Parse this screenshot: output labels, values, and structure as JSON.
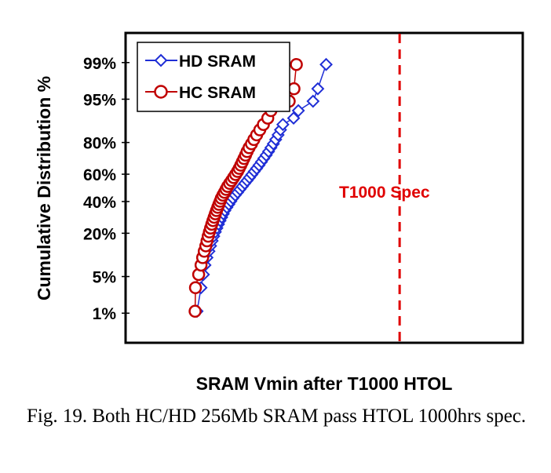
{
  "chart_data": {
    "type": "scatter",
    "title": "",
    "xlabel": "SRAM Vmin after T1000 HTOL",
    "ylabel": "Cumulative Distribution %",
    "x_ticks_visible": false,
    "xlim": [
      0,
      100
    ],
    "y_scale": "probability (normal quantile)",
    "yticks": [
      "1%",
      "5%",
      "20%",
      "40%",
      "60%",
      "80%",
      "95%",
      "99%"
    ],
    "ytick_values": [
      1,
      5,
      20,
      40,
      60,
      80,
      95,
      99
    ],
    "ylim_percent": [
      0.2,
      99.8
    ],
    "legend": {
      "placement": "top-left",
      "entries": [
        "HD SRAM",
        "HC SRAM"
      ]
    },
    "colors": {
      "HD SRAM": "#1f2ed6",
      "HC SRAM": "#c00000",
      "spec": "#e00000"
    },
    "annotations": [
      {
        "text": "T1000 Spec",
        "x": 69,
        "color": "#e00000",
        "line_style": "dashed-vertical"
      }
    ],
    "series": [
      {
        "name": "HD SRAM",
        "marker": "diamond-open",
        "x": [
          18.0,
          19.0,
          19.6,
          20.0,
          20.5,
          21.0,
          21.4,
          21.8,
          22.2,
          22.6,
          23.0,
          23.4,
          23.8,
          24.2,
          24.6,
          25.0,
          25.5,
          26.0,
          26.5,
          27.0,
          27.6,
          28.2,
          28.8,
          29.4,
          30.0,
          30.6,
          31.2,
          31.8,
          32.4,
          33.0,
          33.6,
          34.2,
          34.8,
          35.4,
          36.0,
          36.6,
          37.2,
          37.8,
          38.4,
          39.0,
          39.6,
          42.3,
          43.5,
          47.2,
          48.4,
          50.5
        ],
        "y": [
          1.1,
          3.2,
          5.4,
          7.6,
          9.8,
          12.0,
          14.1,
          16.3,
          18.5,
          20.7,
          22.8,
          25.0,
          27.2,
          29.3,
          31.5,
          33.7,
          35.9,
          38.0,
          40.2,
          42.4,
          44.6,
          46.7,
          48.9,
          51.1,
          53.3,
          55.4,
          57.6,
          59.8,
          62.0,
          64.1,
          66.3,
          68.5,
          70.7,
          72.8,
          75.0,
          77.2,
          79.3,
          81.5,
          83.7,
          85.9,
          88.0,
          90.2,
          92.4,
          94.6,
          96.7,
          98.9
        ]
      },
      {
        "name": "HC SRAM",
        "marker": "circle-open",
        "x": [
          17.5,
          17.6,
          18.4,
          19.0,
          19.4,
          19.8,
          20.2,
          20.5,
          20.8,
          21.1,
          21.4,
          21.7,
          22.0,
          22.3,
          22.6,
          22.9,
          23.2,
          23.5,
          23.8,
          24.1,
          24.5,
          24.9,
          25.3,
          25.7,
          26.2,
          26.7,
          27.2,
          27.7,
          28.2,
          28.6,
          29.0,
          29.4,
          29.8,
          30.2,
          30.6,
          31.1,
          31.7,
          32.3,
          33.0,
          33.8,
          34.7,
          35.8,
          36.6,
          41.2,
          42.4,
          43.0
        ],
        "y": [
          1.1,
          3.2,
          5.4,
          7.6,
          9.8,
          12.0,
          14.1,
          16.3,
          18.5,
          20.7,
          22.8,
          25.0,
          27.2,
          29.3,
          31.5,
          33.7,
          35.9,
          38.0,
          40.2,
          42.4,
          44.6,
          46.7,
          48.9,
          51.1,
          53.3,
          55.4,
          57.6,
          59.8,
          62.0,
          64.1,
          66.3,
          68.5,
          70.7,
          72.8,
          75.0,
          77.2,
          79.3,
          81.5,
          83.7,
          85.9,
          88.0,
          90.2,
          92.4,
          94.6,
          96.7,
          98.9
        ]
      }
    ]
  },
  "caption": "Fig. 19. Both HC/HD 256Mb SRAM pass HTOL 1000hrs spec."
}
